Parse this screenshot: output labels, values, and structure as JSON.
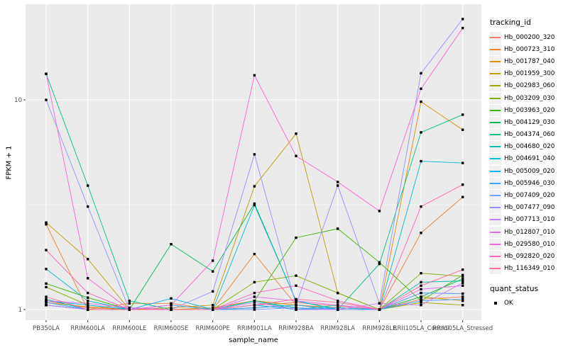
{
  "chart_data": {
    "type": "line",
    "title": "",
    "xlabel": "sample_name",
    "ylabel": "FPKM + 1",
    "y_scale": "log10",
    "y_ticks": [
      1,
      10
    ],
    "y_minor_ticks": [
      3.162
    ],
    "ylim": [
      0.89,
      28.6
    ],
    "grid": "on",
    "legend_position": "right",
    "point_marker": "black-square",
    "categories": [
      "PB350LA",
      "RRIM600LA",
      "RRIM600LE",
      "RRIM600SE",
      "RRIM600PE",
      "RRIM901LA",
      "RRIM928BA",
      "RRIM928LA",
      "RRIM928LE",
      "RRII105LA_Control",
      "RRII105LA_Stressed"
    ],
    "series": [
      {
        "name": "Hb_000200_320",
        "color": "#F8766D",
        "values": [
          1.1,
          1.02,
          1.0,
          1.0,
          1.0,
          1.05,
          1.08,
          1.04,
          1.0,
          1.12,
          1.15
        ]
      },
      {
        "name": "Hb_000723_310",
        "color": "#EA8331",
        "values": [
          2.55,
          1.0,
          1.07,
          1.07,
          1.0,
          1.84,
          1.05,
          1.02,
          1.0,
          2.32,
          3.44
        ]
      },
      {
        "name": "Hb_001787_040",
        "color": "#D89000",
        "values": [
          1.08,
          1.03,
          1.0,
          1.0,
          1.02,
          1.1,
          1.05,
          1.0,
          1.0,
          9.8,
          7.2
        ]
      },
      {
        "name": "Hb_001959_300",
        "color": "#C09B00",
        "values": [
          2.6,
          1.74,
          1.0,
          1.02,
          1.05,
          3.87,
          6.9,
          1.2,
          1.0,
          1.15,
          1.1
        ]
      },
      {
        "name": "Hb_002983_060",
        "color": "#A3A500",
        "values": [
          1.05,
          1.0,
          1.0,
          1.0,
          1.0,
          1.02,
          1.05,
          1.0,
          1.0,
          1.08,
          1.05
        ]
      },
      {
        "name": "Hb_003209_030",
        "color": "#7CAE00",
        "values": [
          1.28,
          1.05,
          1.0,
          1.0,
          1.0,
          1.35,
          1.45,
          1.2,
          1.0,
          1.49,
          1.44
        ]
      },
      {
        "name": "Hb_003963_020",
        "color": "#39B600",
        "values": [
          1.33,
          1.14,
          1.0,
          1.0,
          1.0,
          1.1,
          2.2,
          2.43,
          1.68,
          1.1,
          1.46
        ]
      },
      {
        "name": "Hb_004129_030",
        "color": "#00BB4E",
        "values": [
          1.05,
          1.0,
          1.0,
          2.05,
          1.52,
          3.2,
          1.1,
          1.0,
          1.0,
          1.15,
          1.4
        ]
      },
      {
        "name": "Hb_004374_060",
        "color": "#00C087",
        "values": [
          13.3,
          3.9,
          1.1,
          1.0,
          1.0,
          1.1,
          1.02,
          1.0,
          1.65,
          7.0,
          8.5
        ]
      },
      {
        "name": "Hb_004680_020",
        "color": "#00C0B2",
        "values": [
          1.12,
          1.0,
          1.0,
          1.0,
          1.0,
          1.1,
          1.0,
          1.05,
          1.0,
          1.35,
          1.37
        ]
      },
      {
        "name": "Hb_004691_040",
        "color": "#00BCD9",
        "values": [
          1.56,
          1.1,
          1.0,
          1.0,
          1.0,
          3.15,
          1.1,
          1.0,
          1.0,
          5.1,
          5.0
        ]
      },
      {
        "name": "Hb_005009_020",
        "color": "#00B3F2",
        "values": [
          1.1,
          1.05,
          1.0,
          1.13,
          1.0,
          1.05,
          1.0,
          1.02,
          1.0,
          1.2,
          1.19
        ]
      },
      {
        "name": "Hb_005946_030",
        "color": "#35A2FF",
        "values": [
          1.08,
          1.0,
          1.0,
          1.05,
          1.0,
          1.02,
          1.05,
          1.0,
          1.0,
          1.1,
          1.12
        ]
      },
      {
        "name": "Hb_007409_020",
        "color": "#6C9EFF",
        "values": [
          1.05,
          1.0,
          1.0,
          1.0,
          1.0,
          1.0,
          1.02,
          1.0,
          1.0,
          1.2,
          1.19
        ]
      },
      {
        "name": "Hb_007477_090",
        "color": "#9590FF",
        "values": [
          10.0,
          3.1,
          1.0,
          1.0,
          1.22,
          5.5,
          1.05,
          3.9,
          1.07,
          13.4,
          24.3
        ]
      },
      {
        "name": "Hb_007713_010",
        "color": "#C77CFF",
        "values": [
          1.05,
          1.0,
          1.0,
          1.0,
          1.0,
          1.08,
          1.0,
          1.0,
          1.07,
          1.05,
          1.34
        ]
      },
      {
        "name": "Hb_012807_010",
        "color": "#E76BF3",
        "values": [
          1.1,
          1.07,
          1.02,
          1.0,
          1.0,
          1.15,
          1.1,
          1.05,
          1.0,
          1.25,
          1.3
        ]
      },
      {
        "name": "Hb_029580_010",
        "color": "#FA62DB",
        "values": [
          13.3,
          1.41,
          1.0,
          1.05,
          1.71,
          13.1,
          5.4,
          4.06,
          2.95,
          11.3,
          22.0
        ]
      },
      {
        "name": "Hb_092820_020",
        "color": "#FF62BC",
        "values": [
          1.92,
          1.2,
          1.0,
          1.0,
          1.0,
          1.2,
          1.3,
          1.1,
          1.0,
          3.1,
          3.94
        ]
      },
      {
        "name": "Hb_116349_010",
        "color": "#FF6A98",
        "values": [
          1.15,
          1.0,
          1.0,
          1.0,
          1.0,
          1.05,
          1.12,
          1.08,
          1.0,
          1.3,
          1.55
        ]
      }
    ],
    "legend": {
      "color_title": "tracking_id",
      "shape_title": "quant_status",
      "shape_items": [
        {
          "label": "OK",
          "marker": "black-square"
        }
      ]
    },
    "panel_bg": "#EBEBEB",
    "grid_color": "#FFFFFF",
    "tick_text_color": "#4D4D4D"
  }
}
